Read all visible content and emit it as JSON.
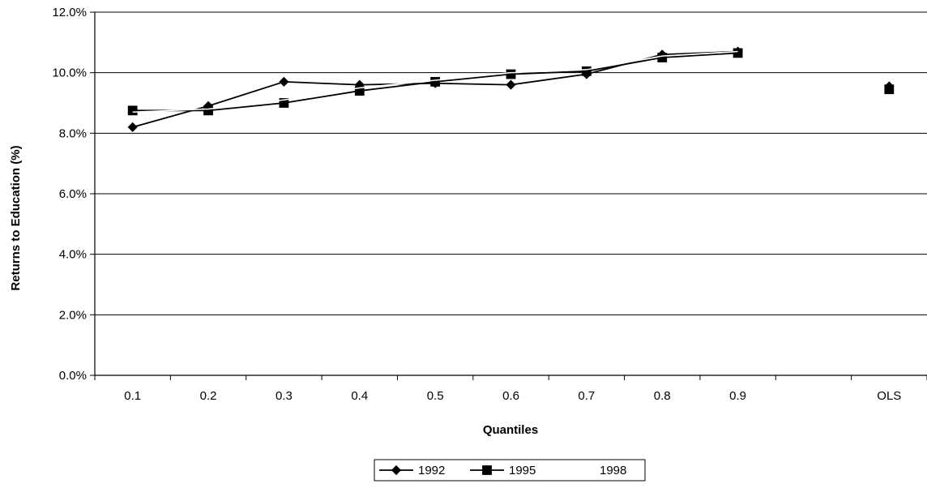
{
  "chart_data": {
    "type": "line",
    "title": "",
    "xlabel": "Quantiles",
    "ylabel": "Returns to Education (%)",
    "categories": [
      "0.1",
      "0.2",
      "0.3",
      "0.4",
      "0.5",
      "0.6",
      "0.7",
      "0.8",
      "0.9",
      "",
      "OLS"
    ],
    "yticks": [
      "0.0%",
      "2.0%",
      "4.0%",
      "6.0%",
      "8.0%",
      "10.0%",
      "12.0%"
    ],
    "ylim": [
      0,
      12
    ],
    "grid": true,
    "legend_position": "bottom-center",
    "series": [
      {
        "name": "1992",
        "marker": "diamond",
        "color": "#000000",
        "values": [
          8.2,
          8.9,
          9.7,
          9.6,
          9.65,
          9.6,
          9.95,
          10.6,
          10.7,
          null,
          9.55
        ]
      },
      {
        "name": "1995",
        "marker": "square",
        "color": "#000000",
        "values": [
          8.75,
          8.75,
          9.0,
          9.4,
          9.7,
          9.95,
          10.05,
          10.5,
          10.65,
          null,
          9.45
        ]
      },
      {
        "name": "1998",
        "marker": "none",
        "color": "#ffffff",
        "values": [
          8.7,
          8.8,
          9.1,
          9.5,
          9.75,
          10.0,
          10.1,
          10.55,
          10.7,
          null,
          9.5
        ]
      }
    ]
  }
}
